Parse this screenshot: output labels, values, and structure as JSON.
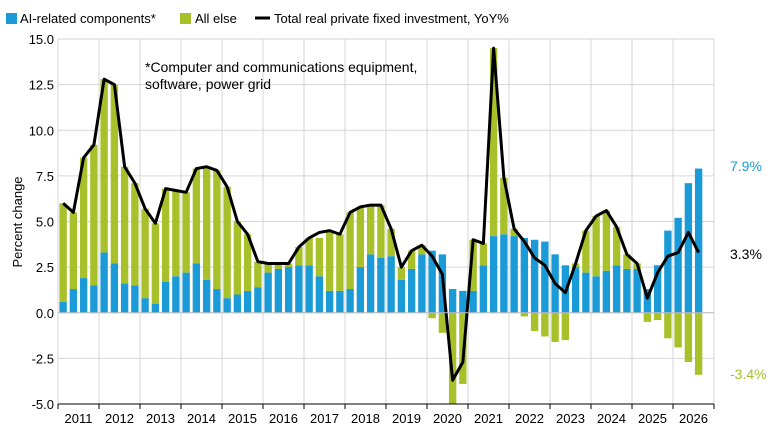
{
  "colors": {
    "ai": "#1a9bd7",
    "else": "#a8c12a",
    "line": "#000000",
    "grid": "#d6d6d6"
  },
  "legend": {
    "ai_label": "AI-related components*",
    "else_label": "All else",
    "line_label": "Total real private fixed investment, YoY%"
  },
  "annotation": {
    "line1": "*Computer and communications equipment,",
    "line2": "software, power grid"
  },
  "end_labels": {
    "ai": "7.9%",
    "line": "3.3%",
    "else": "-3.4%"
  },
  "chart_data": {
    "type": "bar",
    "stacked": true,
    "ylabel": "Percent change",
    "ylim": [
      -5.0,
      15.0
    ],
    "yticks": [
      "15.0",
      "12.5",
      "10.0",
      "7.5",
      "5.0",
      "2.5",
      "0.0",
      "-2.5",
      "-5.0"
    ],
    "ytick_values": [
      15,
      12.5,
      10,
      7.5,
      5,
      2.5,
      0,
      -2.5,
      -5
    ],
    "xticks": [
      "2011",
      "2012",
      "2013",
      "2014",
      "2015",
      "2016",
      "2017",
      "2018",
      "2019",
      "2020",
      "2021",
      "2022",
      "2023",
      "2024",
      "2025",
      "2026"
    ],
    "grid": true,
    "legend_position": "top-left",
    "x_start": "2011Q1",
    "frequency": "quarterly",
    "series": [
      {
        "name": "AI-related components*",
        "values": [
          0.6,
          1.3,
          1.9,
          1.5,
          3.3,
          2.7,
          1.6,
          1.5,
          0.8,
          0.5,
          1.7,
          2.0,
          2.2,
          2.7,
          1.8,
          1.3,
          0.8,
          1.0,
          1.2,
          1.4,
          2.2,
          2.4,
          2.5,
          2.6,
          2.6,
          2.0,
          1.2,
          1.2,
          1.3,
          2.5,
          3.2,
          3.0,
          3.1,
          1.8,
          2.4,
          3.2,
          3.4,
          3.2,
          1.3,
          1.2,
          1.2,
          2.6,
          4.2,
          4.3,
          4.2,
          4.1,
          4.0,
          3.9,
          3.2,
          2.6,
          2.5,
          2.2,
          2.0,
          2.3,
          2.6,
          2.4,
          2.4,
          1.3,
          2.6,
          4.5,
          5.2,
          7.1,
          7.9
        ]
      },
      {
        "name": "All else",
        "values": [
          5.4,
          4.2,
          6.6,
          7.7,
          9.5,
          9.8,
          6.4,
          5.6,
          4.9,
          4.4,
          5.1,
          4.7,
          4.4,
          5.2,
          6.2,
          6.5,
          6.1,
          4.0,
          3.1,
          1.4,
          0.5,
          0.3,
          0.2,
          1.0,
          1.5,
          2.1,
          3.3,
          3.1,
          4.2,
          3.3,
          2.7,
          2.9,
          1.5,
          0.7,
          1.0,
          0.5,
          -0.3,
          -1.1,
          -5.0,
          -3.9,
          2.8,
          1.2,
          10.3,
          3.1,
          0.4,
          -0.2,
          -1.0,
          -1.3,
          -1.6,
          -1.5,
          0.2,
          2.3,
          3.3,
          3.3,
          2.1,
          0.8,
          0.3,
          -0.5,
          -0.4,
          -1.4,
          -1.9,
          -2.7,
          -3.4
        ]
      },
      {
        "name": "Total real private fixed investment, YoY%",
        "type": "line",
        "values": [
          6.0,
          5.5,
          8.5,
          9.2,
          12.8,
          12.5,
          8.0,
          7.1,
          5.7,
          4.9,
          6.8,
          6.7,
          6.6,
          7.9,
          8.0,
          7.8,
          6.9,
          5.0,
          4.3,
          2.8,
          2.7,
          2.7,
          2.7,
          3.6,
          4.1,
          4.4,
          4.5,
          4.3,
          5.5,
          5.8,
          5.9,
          5.9,
          4.6,
          2.5,
          3.4,
          3.7,
          3.1,
          2.1,
          -3.7,
          -2.7,
          4.0,
          3.8,
          14.5,
          7.4,
          4.6,
          3.9,
          3.0,
          2.6,
          1.6,
          1.1,
          2.7,
          4.5,
          5.3,
          5.6,
          4.7,
          3.2,
          2.7,
          0.8,
          2.2,
          3.1,
          3.3,
          4.4,
          3.3
        ]
      }
    ]
  }
}
